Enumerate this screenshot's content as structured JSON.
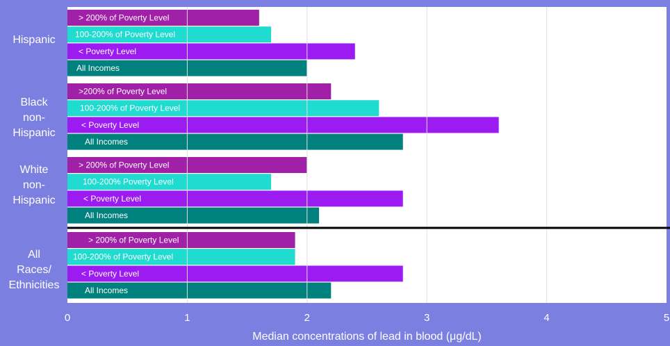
{
  "chart_data": {
    "type": "bar",
    "orientation": "horizontal",
    "xlabel": "Median concentrations of lead in blood (μg/dL)",
    "xlim": [
      0,
      5
    ],
    "xticks": [
      "0",
      "1",
      "2",
      "3",
      "4",
      "5"
    ],
    "grid": true,
    "colors": {
      "> 200% of Poverty Level": "#a020a8",
      "100-200% of Poverty Level": "#20dcd0",
      "< Poverty Level": "#9b1bf0",
      "All Incomes": "#00817e"
    },
    "groups": [
      {
        "label_lines": [
          "Hispanic"
        ],
        "bars": [
          {
            "label": "> 200% of Poverty Level",
            "value": 1.6,
            "series": "> 200% of Poverty Level"
          },
          {
            "label": "100-200% of Poverty Level",
            "value": 1.7,
            "series": "100-200% of Poverty Level"
          },
          {
            "label": "< Poverty Level",
            "value": 2.4,
            "series": "< Poverty Level"
          },
          {
            "label": "All Incomes",
            "value": 2.0,
            "series": "All Incomes"
          }
        ]
      },
      {
        "label_lines": [
          "Black",
          "non-",
          "Hispanic"
        ],
        "bars": [
          {
            "label": ">200% of Poverty Level",
            "value": 2.2,
            "series": "> 200% of Poverty Level"
          },
          {
            "label": "100-200% of Poverty Level",
            "value": 2.6,
            "series": "100-200% of Poverty Level"
          },
          {
            "label": "< Poverty Level",
            "value": 3.6,
            "series": "< Poverty Level"
          },
          {
            "label": "All Incomes",
            "value": 2.8,
            "series": "All Incomes"
          }
        ]
      },
      {
        "label_lines": [
          "White",
          "non-",
          "Hispanic"
        ],
        "bars": [
          {
            "label": "> 200% of Poverty Level",
            "value": 2.0,
            "series": "> 200% of Poverty Level"
          },
          {
            "label": "100-200% Poverty Level",
            "value": 1.7,
            "series": "100-200% of Poverty Level"
          },
          {
            "label": "< Poverty Level",
            "value": 2.8,
            "series": "< Poverty Level"
          },
          {
            "label": "All Incomes",
            "value": 2.1,
            "series": "All Incomes"
          }
        ]
      },
      {
        "label_lines": [
          "All",
          "Races/",
          "Ethnicities"
        ],
        "bars": [
          {
            "label": "> 200% of Poverty Level",
            "value": 1.9,
            "series": "> 200% of Poverty Level"
          },
          {
            "label": "100-200% of Poverty Level",
            "value": 1.9,
            "series": "100-200% of Poverty Level"
          },
          {
            "label": "< Poverty Level",
            "value": 2.8,
            "series": "< Poverty Level"
          },
          {
            "label": "All Incomes",
            "value": 2.2,
            "series": "All Incomes"
          }
        ]
      }
    ]
  }
}
